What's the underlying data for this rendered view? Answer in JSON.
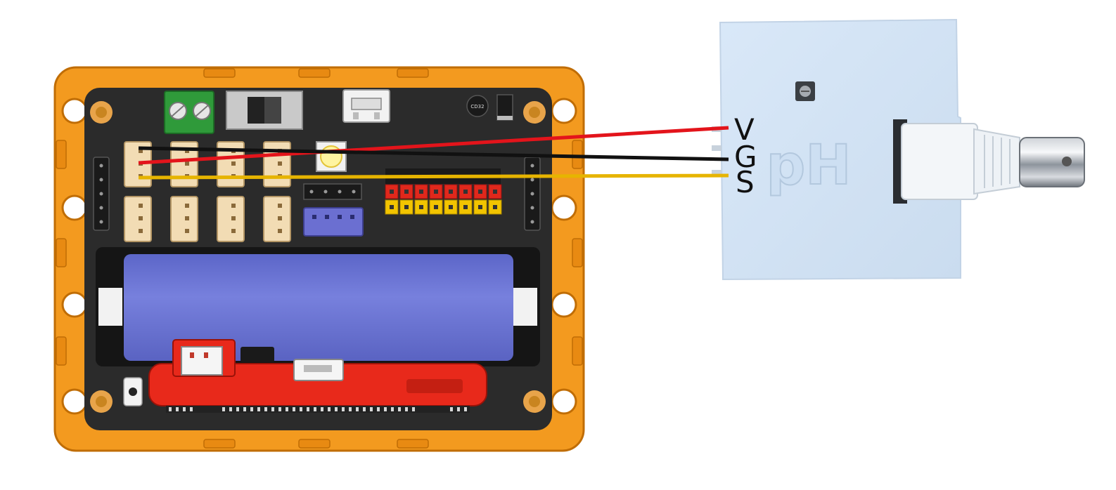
{
  "pin_labels": {
    "v": "V",
    "g": "G",
    "s": "S"
  },
  "module": {
    "marking": "pH"
  },
  "board": {
    "chip_marking": "CD32"
  },
  "colors": {
    "frame": "#f39a1f",
    "pcb": "#2b2b2b",
    "battery": "#6c76d6",
    "microbit": "#e8291b",
    "wire_v": "#e3141b",
    "wire_g": "#111111",
    "wire_s": "#e6b400",
    "module_body": "#d3e4f5",
    "terminal": "#2f9a3a",
    "connector_purple": "#6b6fd1",
    "header_red": "#e0281c",
    "header_yellow": "#f2c400"
  }
}
